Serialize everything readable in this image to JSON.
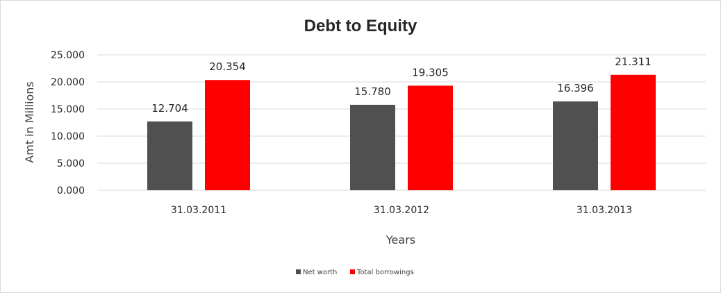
{
  "chart_data": {
    "type": "bar",
    "title": "Debt to Equity",
    "xlabel": "Years",
    "ylabel": "Amt in Millions",
    "categories": [
      "31.03.2011",
      "31.03.2012",
      "31.03.2013"
    ],
    "series": [
      {
        "name": "Net worth",
        "values": [
          12.704,
          15.78,
          16.396
        ],
        "labels": [
          "12.704",
          "15.780",
          "16.396"
        ],
        "color": "#505050"
      },
      {
        "name": "Total borrowings",
        "values": [
          20.354,
          19.305,
          21.311
        ],
        "labels": [
          "20.354",
          "19.305",
          "21.311"
        ],
        "color": "#ff0000"
      }
    ],
    "ylim": [
      0,
      25
    ],
    "yticks": [
      "0.000",
      "5.000",
      "10.000",
      "15.000",
      "20.000",
      "25.000"
    ],
    "grid": true,
    "legend_position": "bottom"
  }
}
